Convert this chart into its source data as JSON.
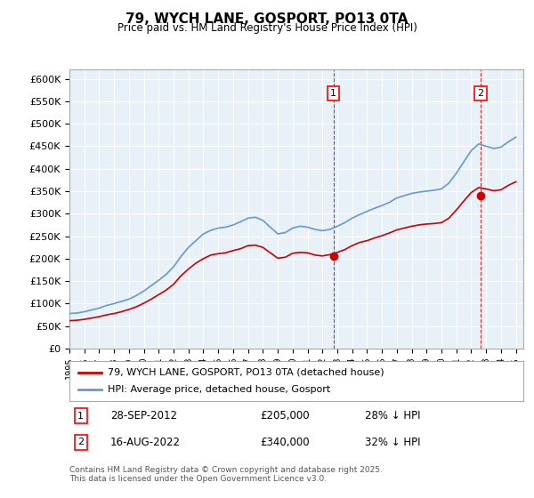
{
  "title": "79, WYCH LANE, GOSPORT, PO13 0TA",
  "subtitle": "Price paid vs. HM Land Registry's House Price Index (HPI)",
  "ylabel": "",
  "xlim": [
    1995,
    2025.5
  ],
  "ylim": [
    0,
    620000
  ],
  "yticks": [
    0,
    50000,
    100000,
    150000,
    200000,
    250000,
    300000,
    350000,
    400000,
    450000,
    500000,
    550000,
    600000
  ],
  "ytick_labels": [
    "£0",
    "£50K",
    "£100K",
    "£150K",
    "£200K",
    "£250K",
    "£300K",
    "£350K",
    "£400K",
    "£450K",
    "£500K",
    "£550K",
    "£600K"
  ],
  "background_color": "#e8f0f8",
  "plot_bg_color": "#e8f0f8",
  "hpi_color": "#6699cc",
  "price_color": "#cc0000",
  "sale1_year": 2012.74,
  "sale1_price": 205000,
  "sale2_year": 2022.62,
  "sale2_price": 340000,
  "legend_label1": "79, WYCH LANE, GOSPORT, PO13 0TA (detached house)",
  "legend_label2": "HPI: Average price, detached house, Gosport",
  "annotation1_label": "1",
  "annotation2_label": "2",
  "note1_date": "28-SEP-2012",
  "note1_price": "£205,000",
  "note1_hpi": "28% ↓ HPI",
  "note2_date": "16-AUG-2022",
  "note2_price": "£340,000",
  "note2_hpi": "32% ↓ HPI",
  "footer": "Contains HM Land Registry data © Crown copyright and database right 2025.\nThis data is licensed under the Open Government Licence v3.0.",
  "hpi_data_x": [
    1995,
    1995.5,
    1996,
    1996.5,
    1997,
    1997.5,
    1998,
    1998.5,
    1999,
    1999.5,
    2000,
    2000.5,
    2001,
    2001.5,
    2002,
    2002.5,
    2003,
    2003.5,
    2004,
    2004.5,
    2005,
    2005.5,
    2006,
    2006.5,
    2007,
    2007.5,
    2008,
    2008.5,
    2009,
    2009.5,
    2010,
    2010.5,
    2011,
    2011.5,
    2012,
    2012.5,
    2013,
    2013.5,
    2014,
    2014.5,
    2015,
    2015.5,
    2016,
    2016.5,
    2017,
    2017.5,
    2018,
    2018.5,
    2019,
    2019.5,
    2020,
    2020.5,
    2021,
    2021.5,
    2022,
    2022.5,
    2023,
    2023.5,
    2024,
    2024.5,
    2025
  ],
  "hpi_data_y": [
    78000,
    79000,
    82000,
    86000,
    90000,
    96000,
    100000,
    105000,
    110000,
    118000,
    128000,
    140000,
    152000,
    165000,
    182000,
    205000,
    225000,
    240000,
    255000,
    263000,
    268000,
    270000,
    275000,
    282000,
    290000,
    292000,
    285000,
    270000,
    255000,
    258000,
    268000,
    272000,
    270000,
    265000,
    262000,
    265000,
    272000,
    280000,
    290000,
    298000,
    305000,
    312000,
    318000,
    325000,
    335000,
    340000,
    345000,
    348000,
    350000,
    352000,
    355000,
    368000,
    390000,
    415000,
    440000,
    455000,
    450000,
    445000,
    448000,
    460000,
    470000
  ],
  "price_data_x": [
    1995,
    1995.5,
    1996,
    1996.5,
    1997,
    1997.5,
    1998,
    1998.5,
    1999,
    1999.5,
    2000,
    2000.5,
    2001,
    2001.5,
    2002,
    2002.5,
    2003,
    2003.5,
    2004,
    2004.5,
    2005,
    2005.5,
    2006,
    2006.5,
    2007,
    2007.5,
    2008,
    2008.5,
    2009,
    2009.5,
    2010,
    2010.5,
    2011,
    2011.5,
    2012,
    2012.5,
    2013,
    2013.5,
    2014,
    2014.5,
    2015,
    2015.5,
    2016,
    2016.5,
    2017,
    2017.5,
    2018,
    2018.5,
    2019,
    2019.5,
    2020,
    2020.5,
    2021,
    2021.5,
    2022,
    2022.5,
    2023,
    2023.5,
    2024,
    2024.5,
    2025
  ],
  "price_data_y": [
    62000,
    63000,
    65000,
    68000,
    71000,
    75000,
    78000,
    82000,
    87000,
    93000,
    101000,
    110000,
    120000,
    130000,
    143000,
    162000,
    177000,
    190000,
    200000,
    208000,
    211000,
    213000,
    218000,
    222000,
    229000,
    230000,
    225000,
    213000,
    201000,
    203000,
    212000,
    214000,
    213000,
    208000,
    206000,
    209000,
    214000,
    220000,
    229000,
    236000,
    240000,
    246000,
    251000,
    257000,
    264000,
    268000,
    272000,
    275000,
    277000,
    278000,
    280000,
    290000,
    308000,
    328000,
    347000,
    358000,
    355000,
    351000,
    353000,
    363000,
    371000
  ]
}
